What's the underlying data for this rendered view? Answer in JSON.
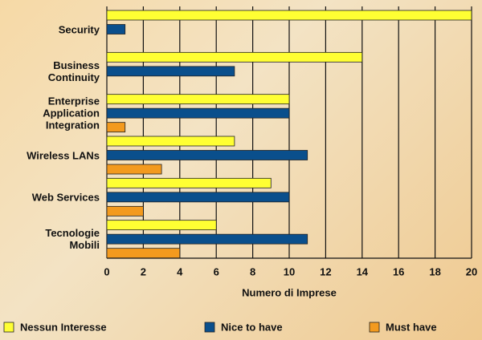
{
  "chart_data": {
    "type": "barh",
    "xlabel": "Numero di Imprese",
    "categories": [
      "Security",
      "Business Continuity",
      "Enterprise Application Integration",
      "Wireless LANs",
      "Web Services",
      "Tecnologie Mobili"
    ],
    "series": [
      {
        "name": "Nessun Interesse",
        "color": "#ffff33",
        "values": [
          20,
          14,
          10,
          7,
          9,
          6
        ]
      },
      {
        "name": "Nice to have",
        "color": "#0a4f8c",
        "values": [
          1,
          7,
          10,
          11,
          10,
          11
        ]
      },
      {
        "name": "Must have",
        "color": "#f39a1e",
        "values": [
          0,
          0,
          1,
          3,
          2,
          4
        ]
      }
    ],
    "xlim": [
      0,
      20
    ],
    "xticks": [
      0,
      2,
      4,
      6,
      8,
      10,
      12,
      14,
      16,
      18,
      20
    ],
    "grid": true,
    "legend": "bottom"
  }
}
